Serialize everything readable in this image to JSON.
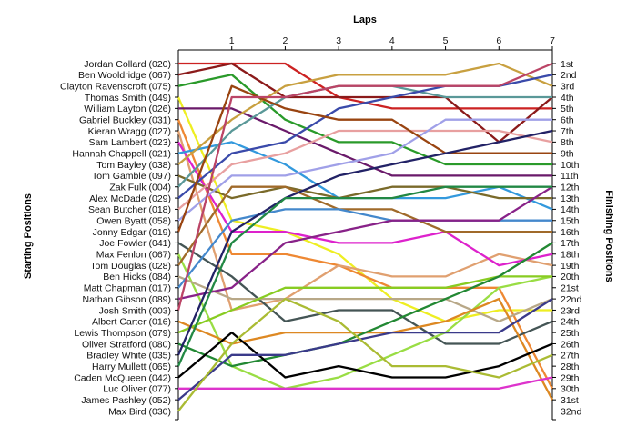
{
  "chart_data": {
    "type": "line",
    "title": "",
    "xlabel": "Laps",
    "ylabel_left": "Starting Positions",
    "ylabel_right": "Finishing Positions",
    "x": [
      0,
      1,
      2,
      3,
      4,
      5,
      6,
      7
    ],
    "x_tick_labels": [
      "1",
      "2",
      "3",
      "4",
      "5",
      "6",
      "7"
    ],
    "y_inverted": true,
    "ylim": [
      1,
      32
    ],
    "finishing_labels": [
      "1st",
      "2nd",
      "3rd",
      "4th",
      "5th",
      "6th",
      "7th",
      "8th",
      "9th",
      "10th",
      "11th",
      "12th",
      "13th",
      "14th",
      "15th",
      "16th",
      "17th",
      "18th",
      "19th",
      "20th",
      "21st",
      "22nd",
      "23rd",
      "24th",
      "25th",
      "26th",
      "27th",
      "28th",
      "29th",
      "30th",
      "31st",
      "32nd"
    ],
    "legend": "none",
    "series": [
      {
        "name": "Jordan Collard (020)",
        "color": "#cc2222",
        "values": [
          1,
          1,
          1,
          4,
          5,
          5,
          5,
          5
        ]
      },
      {
        "name": "Ben Wooldridge (067)",
        "color": "#8b1a1a",
        "values": [
          2,
          1,
          4,
          4,
          4,
          4,
          8,
          4
        ]
      },
      {
        "name": "Clayton Ravenscroft (075)",
        "color": "#2a9a2a",
        "values": [
          3,
          2,
          6,
          8,
          8,
          10,
          10,
          10
        ]
      },
      {
        "name": "Thomas Smith (049)",
        "color": "#eeee22",
        "values": [
          4,
          15,
          16,
          18,
          22,
          24,
          23,
          23
        ]
      },
      {
        "name": "William Layton (026)",
        "color": "#6a1a6a",
        "values": [
          5,
          5,
          7,
          9,
          11,
          11,
          11,
          11
        ]
      },
      {
        "name": "Gabriel Buckley (031)",
        "color": "#ee8833",
        "values": [
          6,
          18,
          18,
          19,
          21,
          21,
          21,
          30
        ]
      },
      {
        "name": "Kieran Wragg (027)",
        "color": "#e0a070",
        "values": [
          7,
          23,
          22,
          19,
          20,
          20,
          18,
          19
        ]
      },
      {
        "name": "Sam Lambert (023)",
        "color": "#dd22cc",
        "values": [
          8,
          16,
          16,
          17,
          17,
          16,
          19,
          18
        ]
      },
      {
        "name": "Hannah Chappell (021)",
        "color": "#3399dd",
        "values": [
          9,
          8,
          10,
          13,
          13,
          13,
          12,
          14
        ]
      },
      {
        "name": "Tom Bayley (038)",
        "color": "#c8a040",
        "values": [
          10,
          6,
          3,
          2,
          2,
          2,
          1,
          3
        ]
      },
      {
        "name": "Tom Gamble (097)",
        "color": "#7a6a2a",
        "values": [
          11,
          13,
          12,
          13,
          12,
          12,
          13,
          13
        ]
      },
      {
        "name": "Zak Fulk (004)",
        "color": "#5a9898",
        "values": [
          12,
          7,
          4,
          3,
          3,
          4,
          4,
          4
        ]
      },
      {
        "name": "Alex McDade (029)",
        "color": "#3a4aaa",
        "values": [
          13,
          9,
          8,
          5,
          4,
          3,
          3,
          2
        ]
      },
      {
        "name": "Sean Butcher (018)",
        "color": "#e8a0a0",
        "values": [
          14,
          10,
          9,
          7,
          7,
          7,
          7,
          8
        ]
      },
      {
        "name": "Owen Byatt (058)",
        "color": "#a0a0e8",
        "values": [
          15,
          11,
          11,
          10,
          9,
          6,
          6,
          6
        ]
      },
      {
        "name": "Jonny Edgar (019)",
        "color": "#994411",
        "values": [
          16,
          3,
          5,
          6,
          6,
          9,
          9,
          9
        ]
      },
      {
        "name": "Joe Fowler (041)",
        "color": "#445555",
        "values": [
          17,
          20,
          24,
          23,
          23,
          26,
          26,
          24
        ]
      },
      {
        "name": "Max Fenlon (067)",
        "color": "#99dd44",
        "values": [
          18,
          28,
          30,
          29,
          27,
          25,
          21,
          20
        ]
      },
      {
        "name": "Tom Douglas (028)",
        "color": "#a06a2a",
        "values": [
          19,
          12,
          12,
          14,
          14,
          16,
          16,
          16
        ]
      },
      {
        "name": "Ben Hicks (084)",
        "color": "#b8a888",
        "values": [
          20,
          22,
          22,
          22,
          22,
          22,
          24,
          22
        ]
      },
      {
        "name": "Matt Chapman (017)",
        "color": "#4488cc",
        "values": [
          21,
          15,
          14,
          14,
          15,
          15,
          15,
          15
        ]
      },
      {
        "name": "Nathan Gibson (089)",
        "color": "#882288",
        "values": [
          22,
          21,
          17,
          16,
          15,
          15,
          15,
          12
        ]
      },
      {
        "name": "Josh Smith (003)",
        "color": "#bb4466",
        "values": [
          23,
          4,
          4,
          3,
          3,
          3,
          3,
          1
        ]
      },
      {
        "name": "Albert Carter (016)",
        "color": "#dd8822",
        "values": [
          24,
          26,
          25,
          25,
          25,
          24,
          22,
          31
        ]
      },
      {
        "name": "Lewis Thompson (079)",
        "color": "#88cc22",
        "values": [
          25,
          23,
          21,
          21,
          21,
          21,
          20,
          20
        ]
      },
      {
        "name": "Oliver Stratford (080)",
        "color": "#228833",
        "values": [
          26,
          28,
          27,
          26,
          24,
          22,
          20,
          17
        ]
      },
      {
        "name": "Bradley White (035)",
        "color": "#222266",
        "values": [
          27,
          16,
          13,
          11,
          10,
          9,
          8,
          7
        ]
      },
      {
        "name": "Harry Mullett (065)",
        "color": "#228844",
        "values": [
          28,
          17,
          13,
          13,
          13,
          12,
          12,
          12
        ]
      },
      {
        "name": "Caden McQueen (042)",
        "color": "#000000",
        "values": [
          29,
          25,
          29,
          28,
          29,
          29,
          28,
          26
        ]
      },
      {
        "name": "Luc Oliver (077)",
        "color": "#dd33cc",
        "values": [
          30,
          30,
          30,
          30,
          30,
          30,
          30,
          29
        ]
      },
      {
        "name": "James Pashley (052)",
        "color": "#3a3a8a",
        "values": [
          31,
          27,
          27,
          26,
          25,
          25,
          25,
          22
        ]
      },
      {
        "name": "Max Bird (030)",
        "color": "#aabb33",
        "values": [
          32,
          26,
          22,
          24,
          28,
          28,
          29,
          27
        ]
      }
    ]
  }
}
